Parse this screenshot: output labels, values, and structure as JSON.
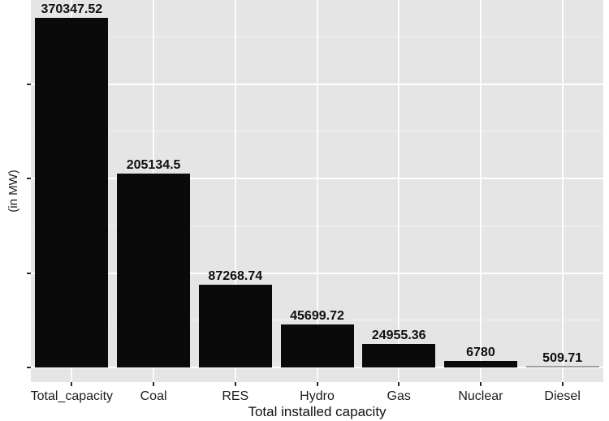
{
  "chart_data": {
    "type": "bar",
    "title": "",
    "categories": [
      "Total_capacity",
      "Coal",
      "RES",
      "Hydro",
      "Gas",
      "Nuclear",
      "Diesel"
    ],
    "values": [
      370347.52,
      205134.5,
      87268.74,
      45699.72,
      24955.36,
      6780,
      509.71
    ],
    "value_labels": [
      "370347.52",
      "205134.5",
      "87268.74",
      "45699.72",
      "24955.36",
      "6780",
      "509.71"
    ],
    "xlabel": "Total installed capacity",
    "ylabel": "(in MW)",
    "ylim": [
      -15500,
      388850
    ],
    "y_major_breaks": [
      0,
      100000,
      200000,
      300000
    ],
    "y_minor_breaks": [
      50000,
      150000,
      250000,
      350000
    ],
    "grid": true,
    "legend": "none",
    "colors": {
      "bar": "#0a0a0a",
      "bar_hairline": "#a0a0a0",
      "panel_bg": "#e5e5e5",
      "grid_major": "#ffffff",
      "grid_minor": "#f2f2f2",
      "text": "#1c1c1c",
      "tick": "#2b2b2b",
      "page_bg": "#ffffff"
    }
  }
}
